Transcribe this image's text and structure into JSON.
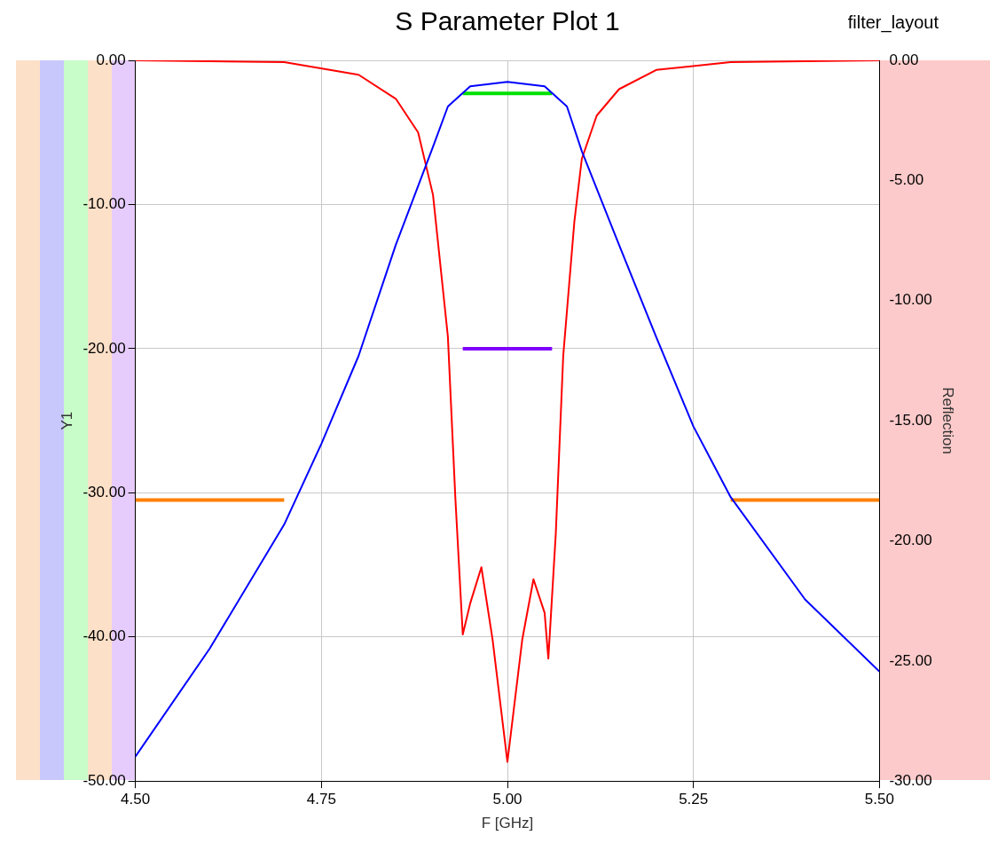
{
  "chart_data": {
    "type": "line",
    "title": "S Parameter Plot 1",
    "xlabel": "F [GHz]",
    "ylabel": "Y1",
    "y2label": "Reflection",
    "annotations": [
      "filter_layout"
    ],
    "xlim": [
      4.5,
      5.5
    ],
    "xticks": [
      {
        "value": 4.5,
        "label": "4.50"
      },
      {
        "value": 4.75,
        "label": "4.75"
      },
      {
        "value": 5.0,
        "label": "5.00"
      },
      {
        "value": 5.25,
        "label": "5.25"
      },
      {
        "value": 5.5,
        "label": "5.50"
      }
    ],
    "ylim": [
      -50,
      0
    ],
    "yticks": [
      {
        "value": -50,
        "label": "-50.00"
      },
      {
        "value": -40,
        "label": "-40.00"
      },
      {
        "value": -30,
        "label": "-30.00"
      },
      {
        "value": -20,
        "label": "-20.00"
      },
      {
        "value": -10,
        "label": "-10.00"
      },
      {
        "value": 0,
        "label": "0.00"
      }
    ],
    "y2lim": [
      -30,
      0
    ],
    "y2ticks": [
      {
        "value": -30,
        "label": "-30.00"
      },
      {
        "value": -25,
        "label": "-25.00"
      },
      {
        "value": -20,
        "label": "-20.00"
      },
      {
        "value": -15,
        "label": "-15.00"
      },
      {
        "value": -10,
        "label": "-10.00"
      },
      {
        "value": -5,
        "label": "-5.00"
      },
      {
        "value": 0,
        "label": "0.00"
      }
    ],
    "grid": true,
    "marker": "none",
    "series": [
      {
        "color": "#0000ff",
        "x": [
          4.5,
          4.6,
          4.7,
          4.75,
          4.8,
          4.85,
          4.9,
          4.92,
          4.95,
          5.0,
          5.05,
          5.08,
          5.1,
          5.15,
          5.2,
          5.25,
          5.3,
          5.4,
          5.5
        ],
        "values": [
          -48.3,
          -40.8,
          -32.2,
          -26.6,
          -20.5,
          -12.8,
          -6.0,
          -3.2,
          -1.8,
          -1.5,
          -1.8,
          -3.2,
          -6.3,
          -12.8,
          -19.2,
          -25.4,
          -30.3,
          -37.4,
          -42.4
        ]
      },
      {
        "color": "#ff0000",
        "axis": "y2",
        "x": [
          4.5,
          4.7,
          4.8,
          4.85,
          4.88,
          4.9,
          4.92,
          4.93,
          4.94,
          4.95,
          4.965,
          4.98,
          5.0,
          5.02,
          5.035,
          5.05,
          5.055,
          5.065,
          5.075,
          5.09,
          5.1,
          5.12,
          5.15,
          5.2,
          5.3,
          5.5
        ],
        "values": [
          0,
          -0.07,
          -0.6,
          -1.6,
          -3.0,
          -5.6,
          -11.5,
          -18.2,
          -23.9,
          -22.6,
          -21.1,
          -24.1,
          -29.2,
          -24.1,
          -21.6,
          -23.0,
          -24.9,
          -19.7,
          -12.3,
          -6.7,
          -4.1,
          -2.3,
          -1.2,
          -0.4,
          -0.07,
          0
        ]
      },
      {
        "color": "#00e000",
        "x": [
          4.94,
          5.06
        ],
        "values": [
          -2.3,
          -2.3
        ]
      },
      {
        "color": "#8000ff",
        "x": [
          4.94,
          5.06
        ],
        "values": [
          -20,
          -20
        ]
      },
      {
        "color": "#ff8000",
        "x": [
          4.5,
          4.7,
          5.0,
          5.3,
          5.5
        ],
        "values": [
          -30.5,
          -30.5,
          null,
          -30.5,
          -30.5
        ]
      }
    ]
  }
}
